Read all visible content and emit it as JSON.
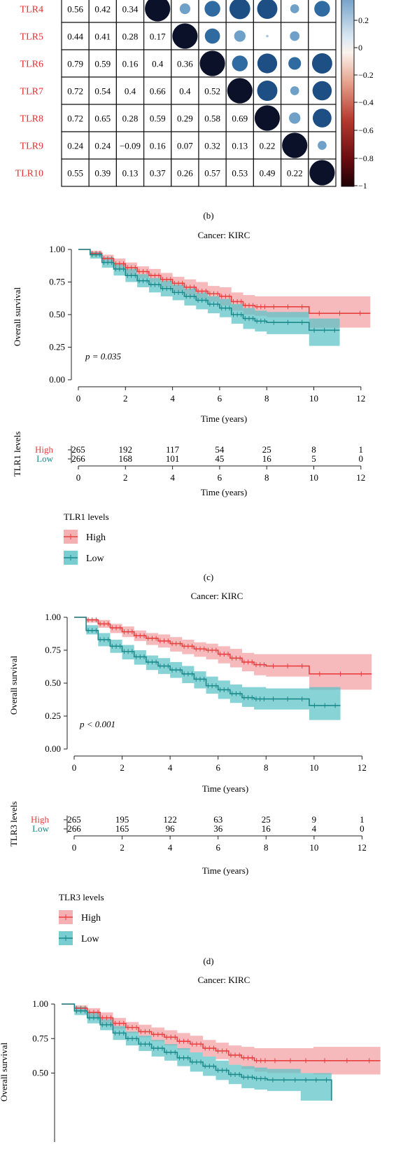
{
  "colors": {
    "high": "#e8403f",
    "low": "#1a8a8c",
    "high_ci": "#f3a2a6",
    "low_ci": "#5fc4c7",
    "dark": "#1f1f1f",
    "label_red": "#e0302f"
  },
  "chart_data": [
    {
      "type": "heatmap",
      "caption": "(b)",
      "rows": [
        "TLR4",
        "TLR5",
        "TLR6",
        "TLR7",
        "TLR8",
        "TLR9",
        "TLR10"
      ],
      "cells": [
        [
          "0.56",
          "0.42",
          "0.34"
        ],
        [
          "0.44",
          "0.41",
          "0.28",
          "0.17"
        ],
        [
          "0.79",
          "0.59",
          "0.16",
          "0.4",
          "0.36"
        ],
        [
          "0.72",
          "0.54",
          "0.4",
          "0.66",
          "0.4",
          "0.52"
        ],
        [
          "0.72",
          "0.65",
          "0.28",
          "0.59",
          "0.29",
          "0.58",
          "0.69"
        ],
        [
          "0.24",
          "0.24",
          "−0.09",
          "0.16",
          "0.07",
          "0.32",
          "0.13",
          "0.22"
        ],
        [
          "0.55",
          "0.39",
          "0.13",
          "0.37",
          "0.26",
          "0.57",
          "0.53",
          "0.49",
          "0.22"
        ]
      ],
      "upper": [
        [
          1.0,
          0.42,
          0.62,
          0.82,
          0.8,
          0.35,
          0.62
        ],
        [
          1.0,
          0.6,
          0.45,
          0.1,
          0.38
        ],
        [
          1.0,
          0.62,
          0.78,
          0.5,
          0.8
        ],
        [
          1.0,
          0.8,
          0.35,
          0.76
        ],
        [
          1.0,
          0.45,
          0.74
        ],
        [
          1.0,
          0.35
        ],
        [
          1.0
        ]
      ],
      "colorbar": {
        "ticks": [
          "0.2",
          "0",
          "−0.2",
          "−0.4",
          "−0.6",
          "−0.8",
          "−1"
        ]
      }
    },
    {
      "type": "line",
      "subtype": "kaplan-meier",
      "title": "Cancer: KIRC",
      "xlabel": "Time (years)",
      "ylabel": "Overall survival",
      "xlim": [
        0,
        12.6
      ],
      "ylim": [
        0,
        1
      ],
      "xticks": [
        "0",
        "2",
        "4",
        "6",
        "8",
        "10",
        "12"
      ],
      "yticks": [
        "0.00",
        "0.25",
        "0.50",
        "0.75",
        "1.00"
      ],
      "pvalue": "p = 0.035",
      "series": [
        {
          "name": "High",
          "x": [
            0,
            0.5,
            1,
            1.5,
            2,
            2.5,
            3,
            3.5,
            4,
            4.5,
            5,
            5.5,
            6,
            6.5,
            7,
            7.5,
            8,
            9.8,
            12.4
          ],
          "y": [
            1.0,
            0.97,
            0.93,
            0.89,
            0.86,
            0.83,
            0.8,
            0.77,
            0.74,
            0.71,
            0.68,
            0.66,
            0.64,
            0.6,
            0.57,
            0.56,
            0.56,
            0.51,
            0.51
          ],
          "ci_upper": [
            1.0,
            0.99,
            0.96,
            0.93,
            0.9,
            0.87,
            0.85,
            0.82,
            0.79,
            0.77,
            0.75,
            0.72,
            0.71,
            0.67,
            0.65,
            0.64,
            0.64,
            0.64,
            0.64
          ],
          "ci_lower": [
            1.0,
            0.95,
            0.9,
            0.85,
            0.81,
            0.78,
            0.75,
            0.71,
            0.68,
            0.65,
            0.62,
            0.6,
            0.57,
            0.53,
            0.5,
            0.49,
            0.48,
            0.4,
            0.4
          ]
        },
        {
          "name": "Low",
          "x": [
            0,
            0.5,
            1,
            1.5,
            2,
            2.5,
            3,
            3.5,
            4,
            4.5,
            5,
            5.5,
            6,
            6.5,
            7,
            7.5,
            8,
            9.8,
            11.1
          ],
          "y": [
            1.0,
            0.96,
            0.9,
            0.85,
            0.8,
            0.76,
            0.73,
            0.7,
            0.67,
            0.64,
            0.61,
            0.58,
            0.55,
            0.5,
            0.47,
            0.45,
            0.44,
            0.38,
            0.38
          ],
          "ci_upper": [
            1.0,
            0.98,
            0.94,
            0.89,
            0.85,
            0.81,
            0.78,
            0.76,
            0.73,
            0.7,
            0.67,
            0.64,
            0.62,
            0.58,
            0.55,
            0.53,
            0.52,
            0.47,
            0.47
          ],
          "ci_lower": [
            1.0,
            0.93,
            0.86,
            0.8,
            0.75,
            0.71,
            0.67,
            0.64,
            0.61,
            0.57,
            0.54,
            0.51,
            0.48,
            0.43,
            0.39,
            0.37,
            0.35,
            0.26,
            0.26
          ]
        }
      ],
      "risk_table": {
        "ylabel": "TLR1 levels",
        "High": [
          "265",
          "192",
          "117",
          "54",
          "25",
          "8",
          "1"
        ],
        "Low": [
          "266",
          "168",
          "101",
          "45",
          "16",
          "5",
          "0"
        ]
      },
      "legend": {
        "title": "TLR1 levels",
        "items": [
          "High",
          "Low"
        ]
      },
      "caption": "(c)"
    },
    {
      "type": "line",
      "subtype": "kaplan-meier",
      "title": "Cancer: KIRC",
      "xlabel": "Time (years)",
      "ylabel": "Overall survival",
      "xlim": [
        0,
        12.6
      ],
      "ylim": [
        0,
        1
      ],
      "xticks": [
        "0",
        "2",
        "4",
        "6",
        "8",
        "10",
        "12"
      ],
      "yticks": [
        "0.00",
        "0.25",
        "0.50",
        "0.75",
        "1.00"
      ],
      "pvalue": "p < 0.001",
      "series": [
        {
          "name": "High",
          "x": [
            0,
            0.5,
            1,
            1.5,
            2,
            2.5,
            3,
            3.5,
            4,
            4.5,
            5,
            5.5,
            6,
            6.5,
            7,
            7.5,
            8,
            9.8,
            12.4
          ],
          "y": [
            1.0,
            0.98,
            0.95,
            0.92,
            0.89,
            0.86,
            0.84,
            0.82,
            0.8,
            0.78,
            0.76,
            0.75,
            0.72,
            0.69,
            0.66,
            0.64,
            0.63,
            0.57,
            0.57
          ],
          "ci_upper": [
            1.0,
            0.99,
            0.98,
            0.95,
            0.93,
            0.9,
            0.88,
            0.87,
            0.85,
            0.83,
            0.81,
            0.8,
            0.78,
            0.76,
            0.73,
            0.72,
            0.72,
            0.72,
            0.72
          ],
          "ci_lower": [
            1.0,
            0.96,
            0.92,
            0.88,
            0.85,
            0.82,
            0.79,
            0.77,
            0.74,
            0.72,
            0.7,
            0.68,
            0.65,
            0.62,
            0.59,
            0.56,
            0.55,
            0.45,
            0.45
          ]
        },
        {
          "name": "Low",
          "x": [
            0,
            0.5,
            1,
            1.5,
            2,
            2.5,
            3,
            3.5,
            4,
            4.5,
            5,
            5.5,
            6,
            6.5,
            7,
            7.5,
            8,
            9.8,
            11.1
          ],
          "y": [
            1.0,
            0.9,
            0.83,
            0.78,
            0.74,
            0.7,
            0.66,
            0.63,
            0.6,
            0.57,
            0.53,
            0.48,
            0.45,
            0.42,
            0.39,
            0.38,
            0.38,
            0.33,
            0.33
          ],
          "ci_upper": [
            1.0,
            0.94,
            0.88,
            0.83,
            0.79,
            0.75,
            0.71,
            0.69,
            0.66,
            0.63,
            0.59,
            0.55,
            0.52,
            0.49,
            0.47,
            0.47,
            0.46,
            0.47,
            0.47
          ],
          "ci_lower": [
            1.0,
            0.87,
            0.78,
            0.73,
            0.68,
            0.64,
            0.6,
            0.57,
            0.54,
            0.5,
            0.46,
            0.42,
            0.38,
            0.35,
            0.32,
            0.3,
            0.3,
            0.22,
            0.22
          ]
        }
      ],
      "risk_table": {
        "ylabel": "TLR3 levels",
        "High": [
          "265",
          "195",
          "122",
          "63",
          "25",
          "9",
          "1"
        ],
        "Low": [
          "266",
          "165",
          "96",
          "36",
          "16",
          "4",
          "0"
        ]
      },
      "legend": {
        "title": "TLR3 levels",
        "items": [
          "High",
          "Low"
        ]
      },
      "caption": "(d)"
    },
    {
      "type": "line",
      "subtype": "kaplan-meier",
      "title": "Cancer: KIRC",
      "ylabel": "Overall survival",
      "xlim": [
        0,
        12.6
      ],
      "ylim": [
        0,
        1
      ],
      "yticks": [
        "0.50",
        "0.75",
        "1.00"
      ],
      "series": [
        {
          "name": "High",
          "x": [
            0,
            0.5,
            1,
            1.5,
            2,
            2.5,
            3,
            3.5,
            4,
            4.5,
            5,
            5.5,
            6,
            6.5,
            7,
            7.5,
            8,
            9.8,
            12.4
          ],
          "y": [
            1.0,
            0.97,
            0.94,
            0.9,
            0.86,
            0.83,
            0.8,
            0.78,
            0.76,
            0.73,
            0.71,
            0.68,
            0.66,
            0.63,
            0.61,
            0.59,
            0.59,
            0.59,
            0.59
          ],
          "ci_upper": [
            1.0,
            0.99,
            0.97,
            0.94,
            0.9,
            0.87,
            0.85,
            0.83,
            0.81,
            0.79,
            0.77,
            0.74,
            0.72,
            0.7,
            0.69,
            0.68,
            0.68,
            0.69,
            0.69
          ],
          "ci_lower": [
            1.0,
            0.95,
            0.9,
            0.86,
            0.82,
            0.79,
            0.76,
            0.73,
            0.7,
            0.67,
            0.65,
            0.62,
            0.6,
            0.56,
            0.53,
            0.51,
            0.5,
            0.49,
            0.49
          ]
        },
        {
          "name": "Low",
          "x": [
            0,
            0.5,
            1,
            1.5,
            2,
            2.5,
            3,
            3.5,
            4,
            4.5,
            5,
            5.5,
            6,
            6.5,
            7,
            7.5,
            8,
            9.3,
            10.5
          ],
          "y": [
            1.0,
            0.95,
            0.9,
            0.85,
            0.79,
            0.75,
            0.71,
            0.68,
            0.65,
            0.61,
            0.58,
            0.55,
            0.52,
            0.49,
            0.47,
            0.46,
            0.45,
            0.45,
            0.3
          ],
          "ci_upper": [
            1.0,
            0.98,
            0.94,
            0.89,
            0.84,
            0.8,
            0.77,
            0.74,
            0.71,
            0.68,
            0.65,
            0.62,
            0.59,
            0.56,
            0.55,
            0.54,
            0.53,
            0.5,
            0.5
          ],
          "ci_lower": [
            1.0,
            0.92,
            0.86,
            0.81,
            0.74,
            0.7,
            0.66,
            0.62,
            0.59,
            0.55,
            0.51,
            0.48,
            0.45,
            0.42,
            0.39,
            0.38,
            0.37,
            0.3,
            0.3
          ]
        }
      ]
    }
  ]
}
